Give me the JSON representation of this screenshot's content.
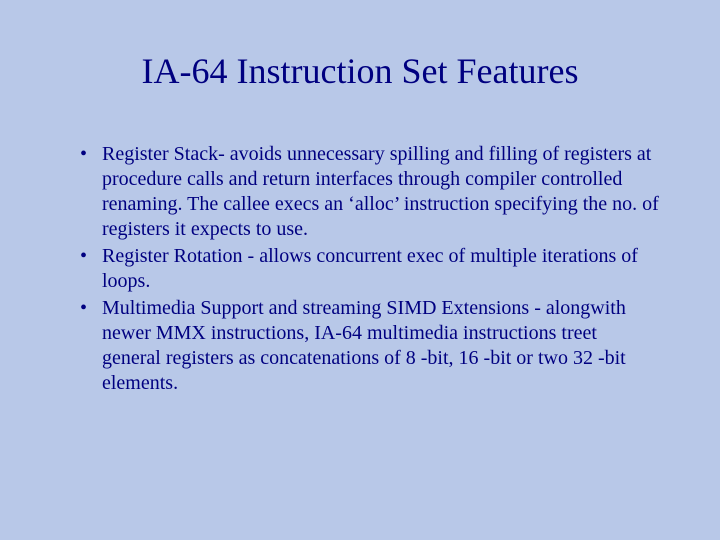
{
  "slide": {
    "title": "IA-64 Instruction Set Features",
    "bullets": [
      "Register Stack- avoids unnecessary spilling and filling of registers at procedure calls and return interfaces through compiler controlled renaming. The callee execs an ‘alloc’ instruction specifying the no. of registers it expects to use.",
      "Register Rotation - allows concurrent exec of multiple iterations of loops.",
      "Multimedia Support and streaming SIMD Extensions - alongwith newer MMX instructions, IA-64 multimedia instructions treet general registers as concatenations of 8 -bit, 16 -bit or two 32 -bit elements."
    ],
    "background_color": "#b8c8e8",
    "text_color": "#000080",
    "title_fontsize": 36,
    "body_fontsize": 20,
    "font_family": "Times New Roman"
  }
}
